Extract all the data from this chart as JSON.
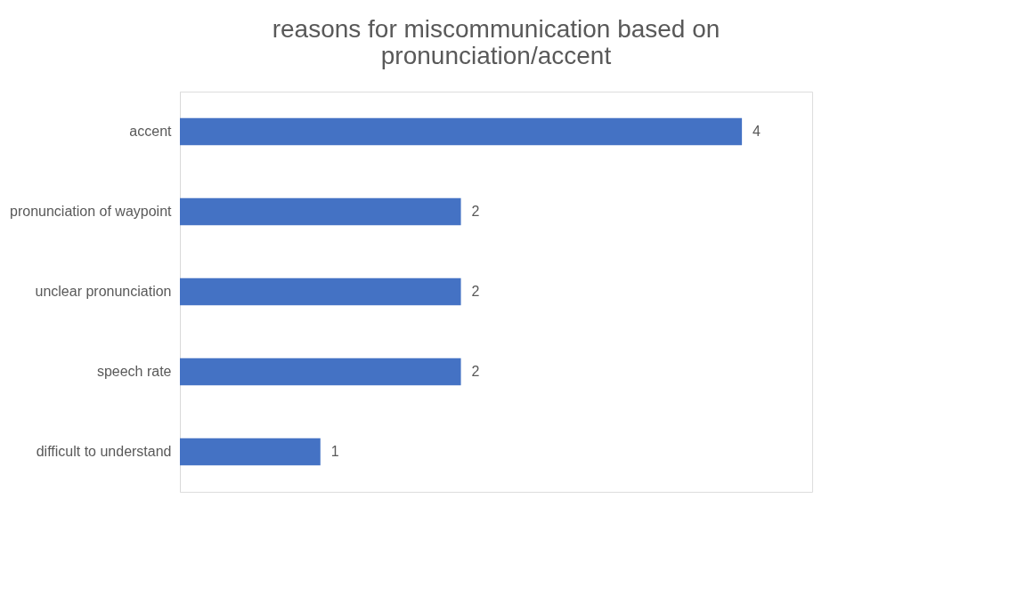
{
  "chart_data": {
    "type": "bar",
    "orientation": "horizontal",
    "title": [
      "reasons for miscommunication based on",
      "pronunciation/accent"
    ],
    "categories": [
      "accent",
      "pronunciation of waypoint",
      "unclear pronunciation",
      "speech rate",
      "difficult to understand"
    ],
    "values": [
      4,
      2,
      2,
      2,
      1
    ],
    "color": "#4472c4",
    "xlim": [
      0,
      4.5
    ],
    "data_labels": true,
    "tick_labels": "y",
    "grid": false
  }
}
